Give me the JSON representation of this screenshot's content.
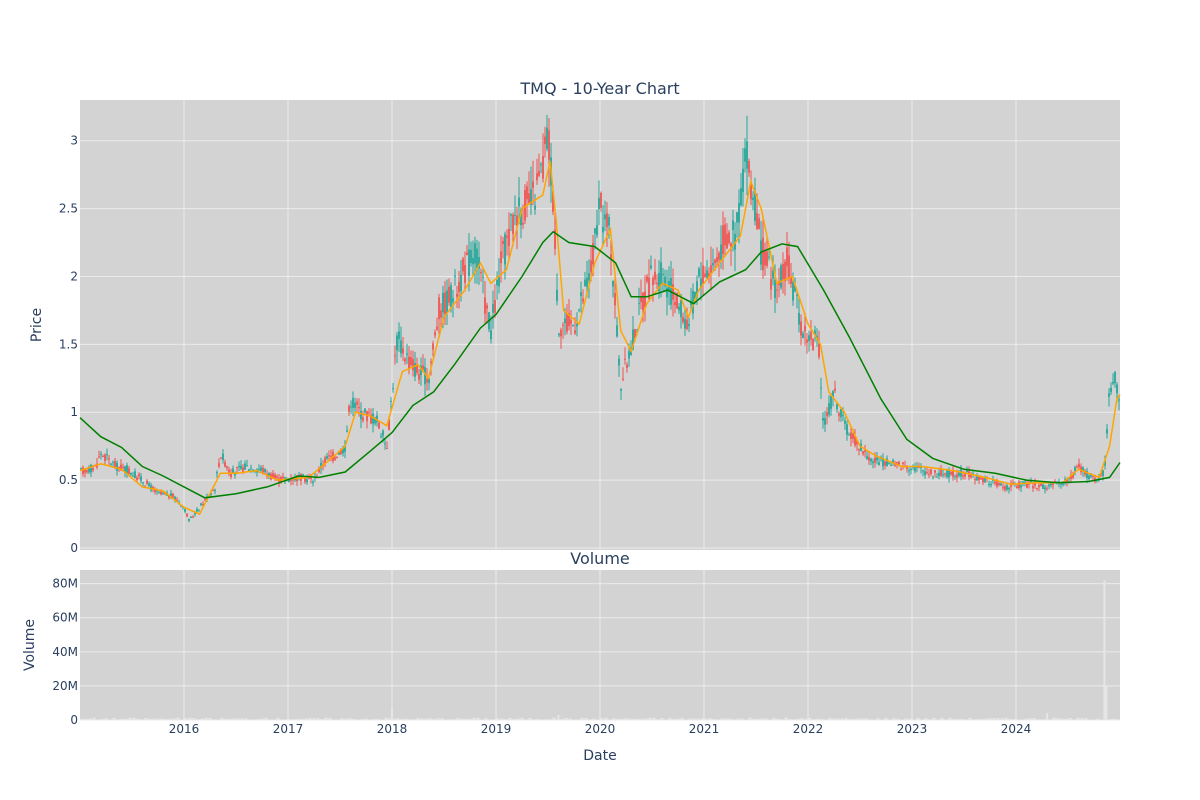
{
  "chart_data": [
    {
      "type": "candlestick",
      "title": "TMQ - 10-Year Chart",
      "xlabel": "",
      "ylabel": "Price",
      "ylim": [
        0,
        3.3
      ],
      "yticks": [
        0,
        0.5,
        1,
        1.5,
        2,
        2.5,
        3
      ],
      "ytick_labels": [
        "0",
        "0.5",
        "1",
        "1.5",
        "2",
        "2.5",
        "3"
      ],
      "xlim": [
        2015.0,
        2025.0
      ],
      "grid": true,
      "colors": {
        "up": "#26a69a",
        "down": "#ef5350",
        "ma_short": "#ffa500",
        "ma_long": "#008000",
        "background": "#d3d3d3"
      },
      "price_path": [
        [
          2015.0,
          0.56
        ],
        [
          2015.15,
          0.6
        ],
        [
          2015.2,
          0.7
        ],
        [
          2015.35,
          0.6
        ],
        [
          2015.45,
          0.58
        ],
        [
          2015.6,
          0.5
        ],
        [
          2015.75,
          0.4
        ],
        [
          2015.9,
          0.38
        ],
        [
          2016.0,
          0.3
        ],
        [
          2016.05,
          0.2
        ],
        [
          2016.1,
          0.25
        ],
        [
          2016.2,
          0.35
        ],
        [
          2016.3,
          0.45
        ],
        [
          2016.35,
          0.7
        ],
        [
          2016.45,
          0.55
        ],
        [
          2016.6,
          0.6
        ],
        [
          2016.75,
          0.58
        ],
        [
          2016.9,
          0.5
        ],
        [
          2017.1,
          0.52
        ],
        [
          2017.25,
          0.5
        ],
        [
          2017.35,
          0.65
        ],
        [
          2017.45,
          0.68
        ],
        [
          2017.55,
          0.75
        ],
        [
          2017.6,
          1.1
        ],
        [
          2017.7,
          1.0
        ],
        [
          2017.85,
          0.95
        ],
        [
          2017.95,
          0.75
        ],
        [
          2018.05,
          1.55
        ],
        [
          2018.15,
          1.4
        ],
        [
          2018.25,
          1.3
        ],
        [
          2018.35,
          1.25
        ],
        [
          2018.45,
          1.75
        ],
        [
          2018.6,
          1.9
        ],
        [
          2018.8,
          2.2
        ],
        [
          2018.95,
          1.6
        ],
        [
          2019.05,
          2.1
        ],
        [
          2019.2,
          2.5
        ],
        [
          2019.35,
          2.55
        ],
        [
          2019.45,
          2.8
        ],
        [
          2019.5,
          3.05
        ],
        [
          2019.55,
          2.6
        ],
        [
          2019.6,
          1.65
        ],
        [
          2019.75,
          1.65
        ],
        [
          2019.9,
          2.0
        ],
        [
          2020.0,
          2.5
        ],
        [
          2020.1,
          2.3
        ],
        [
          2020.2,
          1.2
        ],
        [
          2020.3,
          1.5
        ],
        [
          2020.4,
          1.8
        ],
        [
          2020.5,
          2.0
        ],
        [
          2020.6,
          2.0
        ],
        [
          2020.75,
          1.8
        ],
        [
          2020.85,
          1.65
        ],
        [
          2020.95,
          2.0
        ],
        [
          2021.1,
          2.1
        ],
        [
          2021.2,
          2.3
        ],
        [
          2021.3,
          2.3
        ],
        [
          2021.4,
          2.9
        ],
        [
          2021.45,
          2.7
        ],
        [
          2021.55,
          2.2
        ],
        [
          2021.7,
          1.9
        ],
        [
          2021.8,
          2.1
        ],
        [
          2021.95,
          1.6
        ],
        [
          2022.1,
          1.5
        ],
        [
          2022.15,
          0.9
        ],
        [
          2022.25,
          1.15
        ],
        [
          2022.35,
          0.9
        ],
        [
          2022.5,
          0.75
        ],
        [
          2022.6,
          0.65
        ],
        [
          2022.8,
          0.62
        ],
        [
          2023.0,
          0.6
        ],
        [
          2023.2,
          0.55
        ],
        [
          2023.5,
          0.55
        ],
        [
          2023.7,
          0.5
        ],
        [
          2023.9,
          0.45
        ],
        [
          2024.1,
          0.47
        ],
        [
          2024.3,
          0.45
        ],
        [
          2024.5,
          0.5
        ],
        [
          2024.6,
          0.6
        ],
        [
          2024.75,
          0.5
        ],
        [
          2024.85,
          0.55
        ],
        [
          2024.9,
          1.2
        ],
        [
          2024.95,
          1.25
        ],
        [
          2025.0,
          1.12
        ]
      ],
      "series": [
        {
          "type": "line",
          "points": [
            [
              2015.0,
              0.57
            ],
            [
              2015.2,
              0.62
            ],
            [
              2015.4,
              0.58
            ],
            [
              2015.6,
              0.45
            ],
            [
              2015.8,
              0.42
            ],
            [
              2016.0,
              0.3
            ],
            [
              2016.15,
              0.25
            ],
            [
              2016.35,
              0.55
            ],
            [
              2016.5,
              0.55
            ],
            [
              2016.7,
              0.57
            ],
            [
              2016.9,
              0.5
            ],
            [
              2017.2,
              0.52
            ],
            [
              2017.4,
              0.65
            ],
            [
              2017.55,
              0.75
            ],
            [
              2017.65,
              1.0
            ],
            [
              2017.8,
              0.97
            ],
            [
              2017.95,
              0.9
            ],
            [
              2018.1,
              1.3
            ],
            [
              2018.25,
              1.35
            ],
            [
              2018.35,
              1.25
            ],
            [
              2018.5,
              1.7
            ],
            [
              2018.7,
              1.9
            ],
            [
              2018.85,
              2.1
            ],
            [
              2018.95,
              1.95
            ],
            [
              2019.1,
              2.05
            ],
            [
              2019.25,
              2.5
            ],
            [
              2019.45,
              2.6
            ],
            [
              2019.52,
              2.85
            ],
            [
              2019.58,
              2.4
            ],
            [
              2019.65,
              1.75
            ],
            [
              2019.8,
              1.65
            ],
            [
              2019.95,
              2.1
            ],
            [
              2020.1,
              2.35
            ],
            [
              2020.2,
              1.6
            ],
            [
              2020.3,
              1.45
            ],
            [
              2020.45,
              1.8
            ],
            [
              2020.6,
              1.95
            ],
            [
              2020.75,
              1.9
            ],
            [
              2020.85,
              1.7
            ],
            [
              2020.95,
              1.9
            ],
            [
              2021.15,
              2.1
            ],
            [
              2021.35,
              2.3
            ],
            [
              2021.45,
              2.7
            ],
            [
              2021.55,
              2.5
            ],
            [
              2021.7,
              1.95
            ],
            [
              2021.85,
              2.0
            ],
            [
              2022.0,
              1.65
            ],
            [
              2022.12,
              1.5
            ],
            [
              2022.2,
              1.15
            ],
            [
              2022.35,
              1.0
            ],
            [
              2022.5,
              0.75
            ],
            [
              2022.65,
              0.68
            ],
            [
              2022.9,
              0.6
            ],
            [
              2023.1,
              0.6
            ],
            [
              2023.4,
              0.57
            ],
            [
              2023.7,
              0.52
            ],
            [
              2023.95,
              0.47
            ],
            [
              2024.2,
              0.48
            ],
            [
              2024.45,
              0.48
            ],
            [
              2024.6,
              0.58
            ],
            [
              2024.8,
              0.52
            ],
            [
              2024.9,
              0.75
            ],
            [
              2024.97,
              1.1
            ],
            [
              2025.0,
              1.13
            ]
          ]
        },
        {
          "type": "line",
          "points": [
            [
              2015.0,
              0.96
            ],
            [
              2015.2,
              0.82
            ],
            [
              2015.4,
              0.74
            ],
            [
              2015.6,
              0.6
            ],
            [
              2015.8,
              0.53
            ],
            [
              2016.0,
              0.45
            ],
            [
              2016.2,
              0.37
            ],
            [
              2016.5,
              0.4
            ],
            [
              2016.8,
              0.45
            ],
            [
              2017.1,
              0.53
            ],
            [
              2017.3,
              0.52
            ],
            [
              2017.55,
              0.56
            ],
            [
              2017.8,
              0.72
            ],
            [
              2018.0,
              0.85
            ],
            [
              2018.2,
              1.05
            ],
            [
              2018.4,
              1.15
            ],
            [
              2018.6,
              1.35
            ],
            [
              2018.85,
              1.62
            ],
            [
              2019.0,
              1.72
            ],
            [
              2019.25,
              2.0
            ],
            [
              2019.45,
              2.25
            ],
            [
              2019.55,
              2.33
            ],
            [
              2019.7,
              2.25
            ],
            [
              2019.95,
              2.22
            ],
            [
              2020.15,
              2.1
            ],
            [
              2020.3,
              1.85
            ],
            [
              2020.45,
              1.85
            ],
            [
              2020.65,
              1.9
            ],
            [
              2020.9,
              1.8
            ],
            [
              2021.15,
              1.96
            ],
            [
              2021.4,
              2.05
            ],
            [
              2021.55,
              2.18
            ],
            [
              2021.75,
              2.24
            ],
            [
              2021.9,
              2.22
            ],
            [
              2022.15,
              1.9
            ],
            [
              2022.4,
              1.55
            ],
            [
              2022.7,
              1.1
            ],
            [
              2022.95,
              0.8
            ],
            [
              2023.2,
              0.66
            ],
            [
              2023.5,
              0.58
            ],
            [
              2023.8,
              0.55
            ],
            [
              2024.1,
              0.5
            ],
            [
              2024.4,
              0.48
            ],
            [
              2024.7,
              0.49
            ],
            [
              2024.9,
              0.52
            ],
            [
              2025.0,
              0.63
            ]
          ]
        }
      ]
    },
    {
      "type": "bar",
      "title": "Volume",
      "xlabel": "Date",
      "ylabel": "Volume",
      "ylim": [
        0,
        88000000
      ],
      "yticks": [
        0,
        20000000,
        40000000,
        60000000,
        80000000
      ],
      "ytick_labels": [
        "0",
        "20M",
        "40M",
        "60M",
        "80M"
      ],
      "xlim": [
        2015.0,
        2025.0
      ],
      "xticks": [
        2016,
        2017,
        2018,
        2019,
        2020,
        2021,
        2022,
        2023,
        2024
      ],
      "xtick_labels": [
        "2016",
        "2017",
        "2018",
        "2019",
        "2020",
        "2021",
        "2022",
        "2023",
        "2024"
      ],
      "grid": true,
      "spikes": [
        [
          2018.0,
          7000000
        ],
        [
          2019.6,
          3000000
        ],
        [
          2024.3,
          4000000
        ],
        [
          2024.85,
          82000000
        ],
        [
          2024.87,
          20000000
        ]
      ]
    }
  ]
}
